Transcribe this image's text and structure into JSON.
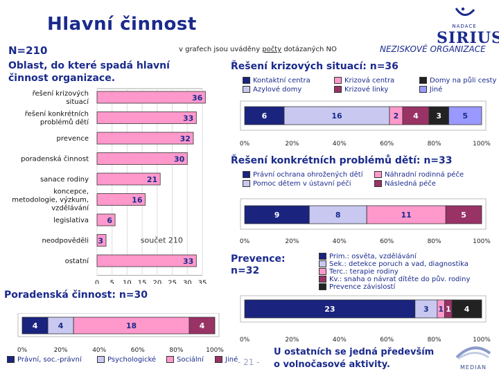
{
  "page": {
    "title": "Hlavní činnost",
    "logo_small": "NADACE",
    "logo_big": "SIRIUS",
    "n_label": "N=210",
    "note_prefix": "v grafech jsou uváděny",
    "note_under": "počty",
    "note_suffix": "dotázaných NO",
    "ngo_label": "NEZISKOVÉ ORGANIZACE",
    "left_subtitle": "Oblast, do které spadá hlavní činnost organizace.",
    "footer_note_line1": "U ostatních se jedná především",
    "footer_note_line2": "o volnočasové aktivity.",
    "page_number": "- 21 -",
    "brand_bottom": "MEDIAN"
  },
  "colors": {
    "title": "#1a2a8c",
    "pink": "#ff99cc",
    "dark_navy": "#1a237e",
    "lavender": "#c8c8f0",
    "magenta": "#993366",
    "black": "#222222",
    "periwinkle": "#9999ff",
    "light_pink": "#ffccee"
  },
  "chart_data": [
    {
      "type": "bar",
      "orientation": "horizontal",
      "title": "Oblast, do které spadá hlavní činnost organizace.",
      "categories": [
        "řešení krizových situací",
        "řešení konkrétních problémů dětí",
        "prevence",
        "poradenská činnost",
        "sanace rodiny",
        "koncepce, metodologie, výzkum, vzdělávání",
        "legislativa",
        "neodpověděli",
        "ostatní"
      ],
      "values": [
        36,
        33,
        32,
        30,
        21,
        16,
        6,
        3,
        33
      ],
      "annotation": "součet 210",
      "xlim": [
        0,
        35
      ],
      "xticks": [
        "0",
        "5",
        "10",
        "15",
        "20",
        "25",
        "30",
        "35"
      ],
      "bar_color": "#ff99cc"
    },
    {
      "type": "bar",
      "stacked": true,
      "orientation": "horizontal",
      "title": "Řešení krizových situací: n=36",
      "series": [
        {
          "name": "Kontaktní centra",
          "value": 6,
          "color": "#1a237e"
        },
        {
          "name": "Azylové domy",
          "value": 16,
          "color": "#c8c8f0"
        },
        {
          "name": "Krizová centra",
          "value": 2,
          "color": "#ff99cc"
        },
        {
          "name": "Krizové linky",
          "value": 4,
          "color": "#993366"
        },
        {
          "name": "Domy na půli cesty",
          "value": 3,
          "color": "#222222"
        },
        {
          "name": "Jiné",
          "value": 5,
          "color": "#9999ff"
        }
      ],
      "xticks": [
        "0%",
        "20%",
        "40%",
        "60%",
        "80%",
        "100%"
      ]
    },
    {
      "type": "bar",
      "stacked": true,
      "orientation": "horizontal",
      "title": "Řešení konkrétních problémů dětí: n=33",
      "series": [
        {
          "name": "Právní ochrana ohrožených dětí",
          "value": 9,
          "color": "#1a237e"
        },
        {
          "name": "Pomoc dětem v ústavní péči",
          "value": 8,
          "color": "#c8c8f0"
        },
        {
          "name": "Náhradní rodinná péče",
          "value": 11,
          "color": "#ff99cc"
        },
        {
          "name": "Následná péče",
          "value": 5,
          "color": "#993366"
        }
      ],
      "xticks": [
        "0%",
        "20%",
        "40%",
        "60%",
        "80%",
        "100%"
      ]
    },
    {
      "type": "bar",
      "stacked": true,
      "orientation": "horizontal",
      "title": "Prevence: n=32",
      "series": [
        {
          "name": "Prim.: osvěta, vzdělávání",
          "value": 23,
          "color": "#1a237e"
        },
        {
          "name": "Sek.: detekce poruch a vad, diagnostika",
          "value": 3,
          "color": "#c8c8f0"
        },
        {
          "name": "Terc.: terapie rodiny",
          "value": 1,
          "color": "#ff99cc"
        },
        {
          "name": "Kv.: snaha o návrat dítěte do pův. rodiny",
          "value": 1,
          "color": "#993366"
        },
        {
          "name": "Prevence závislostí",
          "value": 4,
          "color": "#222222"
        }
      ],
      "xticks": [
        "0%",
        "20%",
        "40%",
        "60%",
        "80%",
        "100%"
      ]
    },
    {
      "type": "bar",
      "stacked": true,
      "orientation": "horizontal",
      "title": "Poradenská činnost: n=30",
      "series": [
        {
          "name": "Právní, soc.-právní",
          "value": 4,
          "color": "#1a237e"
        },
        {
          "name": "Psychologické",
          "value": 4,
          "color": "#c8c8f0"
        },
        {
          "name": "Sociální",
          "value": 18,
          "color": "#ff99cc"
        },
        {
          "name": "Jiné",
          "value": 4,
          "color": "#993366"
        }
      ],
      "xticks": [
        "0%",
        "20%",
        "40%",
        "60%",
        "80%",
        "100%"
      ]
    }
  ]
}
